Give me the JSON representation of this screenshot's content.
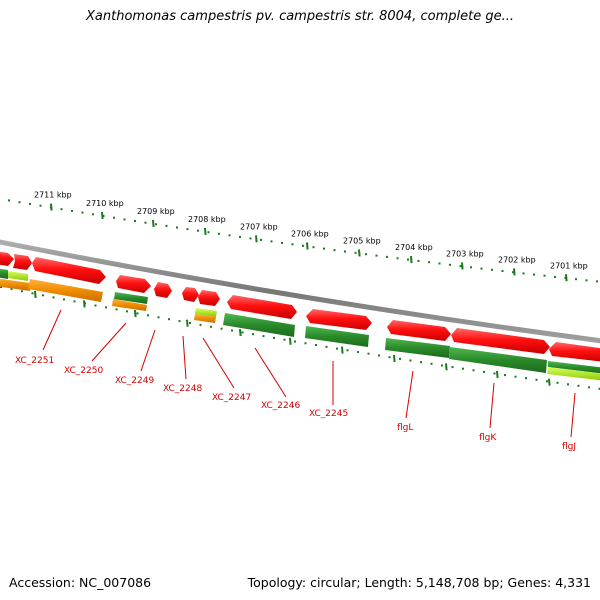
{
  "title": "Xanthomonas campestris pv. campestris str. 8004, complete ge...",
  "footer": {
    "accession": "Accession: NC_007086",
    "summary": "Topology: circular; Length: 5,148,708 bp; Genes: 4,331"
  },
  "ticks": [
    "2711 kbp",
    "2710 kbp",
    "2709 kbp",
    "2708 kbp",
    "2707 kbp",
    "2706 kbp",
    "2705 kbp",
    "2704 kbp",
    "2703 kbp",
    "2702 kbp",
    "2701 kbp"
  ],
  "genes": [
    {
      "label": "XC_2251"
    },
    {
      "label": "XC_2250"
    },
    {
      "label": "XC_2249"
    },
    {
      "label": "XC_2248"
    },
    {
      "label": "XC_2247"
    },
    {
      "label": "XC_2246"
    },
    {
      "label": "XC_2245"
    },
    {
      "label": "flgL"
    },
    {
      "label": "flgK"
    },
    {
      "label": "flgJ"
    }
  ],
  "colors": {
    "gene_red": "#e80000",
    "gene_green": "#2e8b2e",
    "gene_orange": "#f08c00",
    "gene_lime": "#9ad400",
    "backbone": "#8a8a8a",
    "tick": "#1a7a1a",
    "label": "#d40000"
  }
}
